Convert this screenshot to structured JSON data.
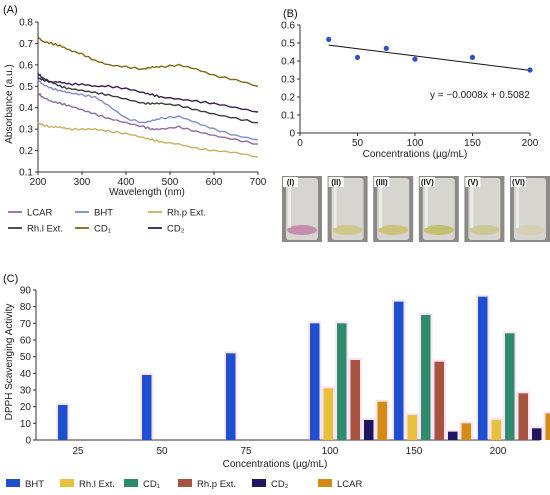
{
  "panels": {
    "a": "(A)",
    "b": "(B)",
    "c": "(C)"
  },
  "chart_data": [
    {
      "type": "line",
      "panel": "(A)",
      "xlabel": "Wavelength (nm)",
      "ylabel": "Absorbance (a.u.)",
      "xlim": [
        200,
        700
      ],
      "ylim": [
        0.1,
        0.8
      ],
      "xticks": [
        "200",
        "300",
        "400",
        "500",
        "600",
        "700"
      ],
      "yticks": [
        "0.1",
        "0.2",
        "0.3",
        "0.4",
        "0.5",
        "0.6",
        "0.7",
        "0.8"
      ],
      "legend_position": "bottom",
      "grid": false,
      "x": [
        200,
        210,
        230,
        250,
        270,
        300,
        330,
        360,
        400,
        440,
        460,
        480,
        520,
        560,
        600,
        650,
        700
      ],
      "series": [
        {
          "name": "LCAR",
          "color": "#8e6d9e",
          "values": [
            0.47,
            0.45,
            0.43,
            0.42,
            0.41,
            0.39,
            0.37,
            0.35,
            0.33,
            0.31,
            0.3,
            0.3,
            0.31,
            0.29,
            0.27,
            0.25,
            0.23
          ]
        },
        {
          "name": "BHT",
          "color": "#7b8fc9",
          "values": [
            0.53,
            0.51,
            0.49,
            0.48,
            0.47,
            0.46,
            0.45,
            0.41,
            0.35,
            0.33,
            0.34,
            0.35,
            0.36,
            0.33,
            0.3,
            0.27,
            0.25
          ]
        },
        {
          "name": "Rh.p Ext.",
          "color": "#c7b163",
          "values": [
            0.33,
            0.32,
            0.31,
            0.31,
            0.3,
            0.3,
            0.3,
            0.29,
            0.28,
            0.26,
            0.25,
            0.24,
            0.23,
            0.21,
            0.2,
            0.19,
            0.17
          ]
        },
        {
          "name": "Rh.l Ext.",
          "color": "#3b3b3b",
          "values": [
            0.56,
            0.54,
            0.52,
            0.5,
            0.49,
            0.48,
            0.47,
            0.46,
            0.44,
            0.42,
            0.42,
            0.42,
            0.41,
            0.39,
            0.37,
            0.35,
            0.33
          ]
        },
        {
          "name": "CD₁",
          "color": "#7d6a14",
          "values": [
            0.73,
            0.71,
            0.7,
            0.69,
            0.67,
            0.65,
            0.62,
            0.6,
            0.59,
            0.58,
            0.59,
            0.59,
            0.6,
            0.58,
            0.55,
            0.53,
            0.5
          ]
        },
        {
          "name": "CD₂",
          "color": "#3a1f52",
          "values": [
            0.54,
            0.53,
            0.52,
            0.52,
            0.51,
            0.51,
            0.5,
            0.5,
            0.49,
            0.47,
            0.46,
            0.45,
            0.44,
            0.43,
            0.42,
            0.4,
            0.38
          ]
        }
      ]
    },
    {
      "type": "scatter",
      "panel": "(B)",
      "xlabel": "Concentrations (µg/mL)",
      "ylabel": "",
      "xlim": [
        0,
        200
      ],
      "ylim": [
        0,
        0.6
      ],
      "xticks": [
        "0",
        "50",
        "100",
        "150",
        "200"
      ],
      "yticks": [
        "0",
        "0.1",
        "0.2",
        "0.3",
        "0.4",
        "0.5",
        "0.6"
      ],
      "grid": false,
      "color": "#2f4fc4",
      "x": [
        25,
        50,
        75,
        100,
        150,
        200
      ],
      "y": [
        0.52,
        0.42,
        0.47,
        0.41,
        0.42,
        0.35
      ],
      "trendline": {
        "slope": -0.0008,
        "intercept": 0.5082
      },
      "equation": "y = −0.0008x + 0.5082"
    },
    {
      "type": "bar",
      "panel": "(C)",
      "xlabel": "Concentrations (µg/mL)",
      "ylabel": "DPPH Scavenging Activity",
      "ylim": [
        0,
        90
      ],
      "yticks": [
        "0",
        "10",
        "20",
        "30",
        "40",
        "50",
        "60",
        "70",
        "80",
        "90"
      ],
      "grid": false,
      "legend_position": "bottom",
      "categories": [
        "25",
        "50",
        "75",
        "100",
        "150",
        "200"
      ],
      "series": [
        {
          "name": "BHT",
          "color": "#1f4fd1",
          "values": [
            21,
            39,
            52,
            70,
            83,
            86
          ]
        },
        {
          "name": "Rh.l Ext.",
          "color": "#e8c13a",
          "values": [
            null,
            null,
            null,
            31,
            15,
            12
          ]
        },
        {
          "name": "CD₁",
          "color": "#2e8b6e",
          "values": [
            null,
            null,
            null,
            70,
            75,
            64
          ]
        },
        {
          "name": "Rh.p Ext.",
          "color": "#a65340",
          "values": [
            null,
            null,
            null,
            48,
            47,
            28
          ]
        },
        {
          "name": "CD₂",
          "color": "#1f1660",
          "values": [
            null,
            null,
            null,
            12,
            5,
            7
          ]
        },
        {
          "name": "LCAR",
          "color": "#d48c14",
          "values": [
            null,
            null,
            null,
            23,
            10,
            16
          ]
        }
      ]
    }
  ],
  "vials": {
    "labels": [
      "(I)",
      "(II)",
      "(III)",
      "(IV)",
      "(V)",
      "(VI)"
    ],
    "liquid_colors": [
      "#c78fae",
      "#cfc88a",
      "#cbc37c",
      "#c3c06f",
      "#c9c896",
      "#d5cfb3"
    ]
  }
}
